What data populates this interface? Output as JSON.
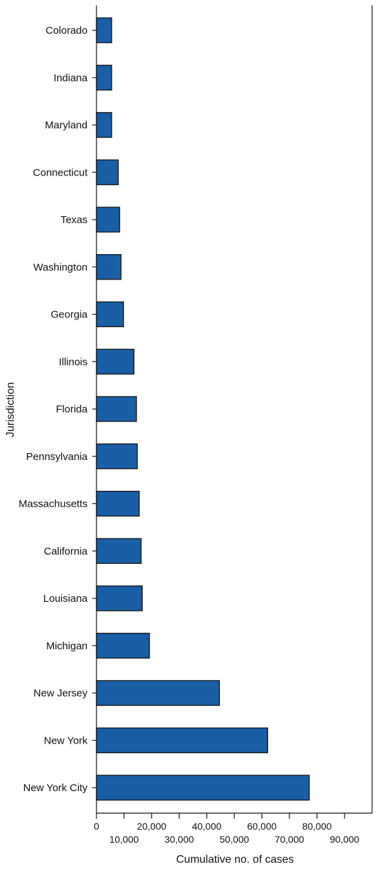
{
  "chart_data": {
    "type": "bar",
    "orientation": "horizontal",
    "categories": [
      "Colorado",
      "Indiana",
      "Maryland",
      "Connecticut",
      "Texas",
      "Washington",
      "Georgia",
      "Illinois",
      "Florida",
      "Pennsylvania",
      "Massachusetts",
      "California",
      "Louisiana",
      "Michigan",
      "New Jersey",
      "New York",
      "New York City"
    ],
    "values": [
      5500,
      5500,
      5500,
      7900,
      8400,
      8900,
      9800,
      13600,
      14500,
      14800,
      15500,
      16200,
      16600,
      19200,
      44600,
      62100,
      77200
    ],
    "xlabel": "Cumulative no. of cases",
    "ylabel": "Jurisdiction",
    "xlim": [
      0,
      100000
    ],
    "x_ticks": [
      {
        "value": 0,
        "label": "0"
      },
      {
        "value": 10000,
        "label": "10,000"
      },
      {
        "value": 20000,
        "label": "20,000"
      },
      {
        "value": 30000,
        "label": "30,000"
      },
      {
        "value": 40000,
        "label": "40,000"
      },
      {
        "value": 50000,
        "label": "50,000"
      },
      {
        "value": 60000,
        "label": "60,000"
      },
      {
        "value": 70000,
        "label": "70,000"
      },
      {
        "value": 80000,
        "label": "80,000"
      },
      {
        "value": 90000,
        "label": "90,000"
      }
    ],
    "grid": false,
    "bar_color": "#1a5ea6",
    "bar_edge_color": "#111111"
  }
}
